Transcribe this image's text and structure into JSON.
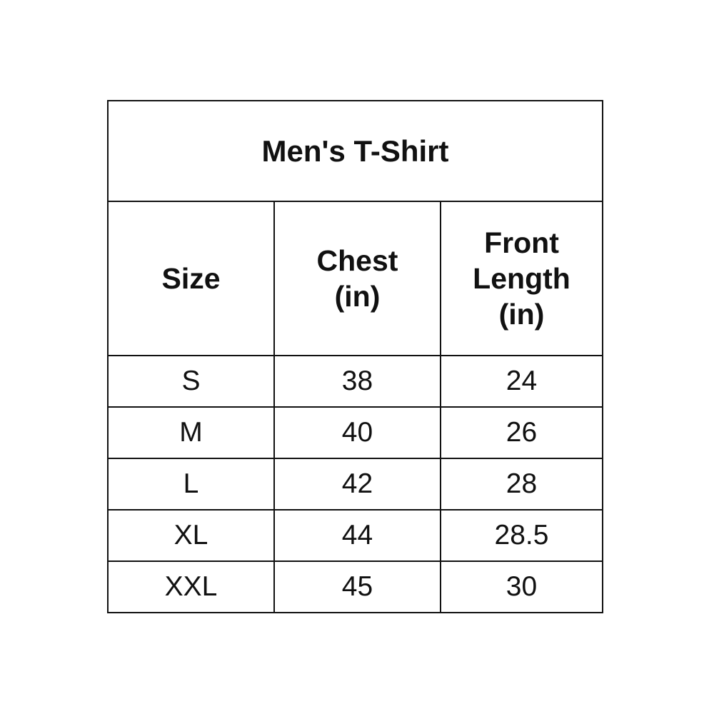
{
  "title": "Men's T-Shirt",
  "columns": [
    {
      "line1": "Size",
      "line2": "",
      "line3": ""
    },
    {
      "line1": "Chest",
      "line2": "(in)",
      "line3": ""
    },
    {
      "line1": "Front",
      "line2": "Length",
      "line3": "(in)"
    }
  ],
  "rows": [
    [
      "S",
      "38",
      "24"
    ],
    [
      "M",
      "40",
      "26"
    ],
    [
      "L",
      "42",
      "28"
    ],
    [
      "XL",
      "44",
      "28.5"
    ],
    [
      "XXL",
      "45",
      "30"
    ]
  ]
}
